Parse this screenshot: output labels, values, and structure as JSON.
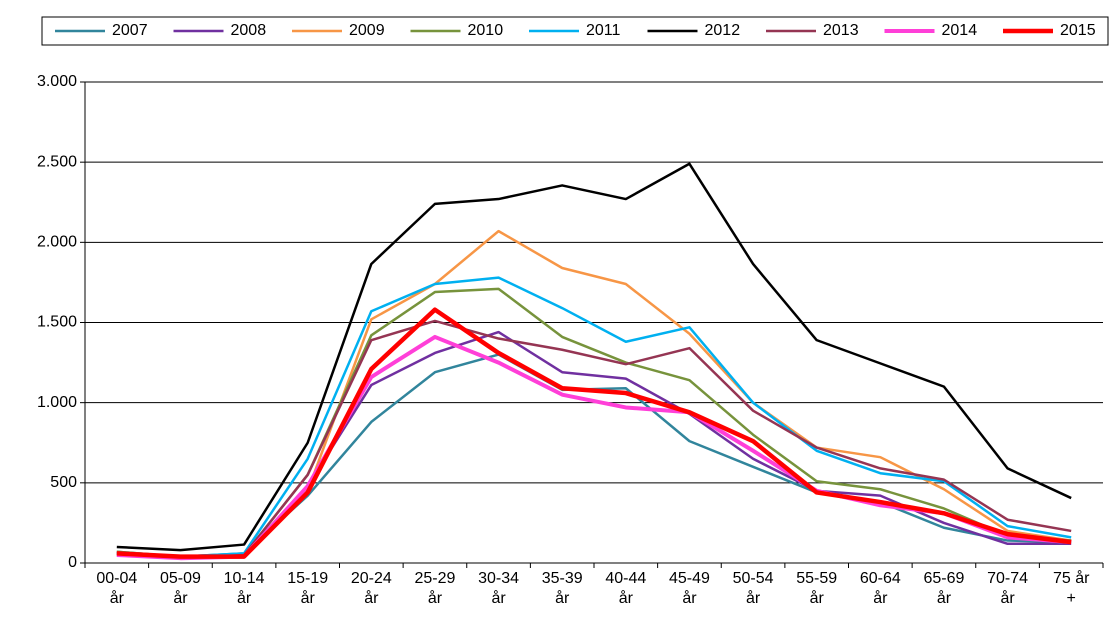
{
  "chart_data": {
    "type": "line",
    "categories": [
      "00-04 år",
      "05-09 år",
      "10-14 år",
      "15-19 år",
      "20-24 år",
      "25-29 år",
      "30-34 år",
      "35-39 år",
      "40-44 år",
      "45-49 år",
      "50-54 år",
      "55-59 år",
      "60-64 år",
      "65-69 år",
      "70-74 år",
      "75 år +"
    ],
    "ylim": [
      0,
      3000
    ],
    "yticks": [
      0,
      500,
      {
        "value": 1000,
        "label": "1.000"
      },
      {
        "value": 1500,
        "label": "1.500"
      },
      {
        "value": 2000,
        "label": "2.000"
      },
      {
        "value": 2500,
        "label": "2.500"
      },
      {
        "value": 3000,
        "label": "3.000"
      }
    ],
    "grid": true,
    "legend": "top",
    "series": [
      {
        "name": "2007",
        "color": "#31859c",
        "width": 2.5,
        "values": [
          70,
          40,
          60,
          420,
          880,
          1190,
          1300,
          1080,
          1090,
          760,
          600,
          440,
          380,
          220,
          140,
          130
        ]
      },
      {
        "name": "2008",
        "color": "#7030a0",
        "width": 2.5,
        "values": [
          60,
          30,
          50,
          480,
          1110,
          1310,
          1440,
          1190,
          1150,
          930,
          650,
          450,
          420,
          250,
          120,
          120
        ]
      },
      {
        "name": "2009",
        "color": "#f79646",
        "width": 2.5,
        "values": [
          60,
          40,
          50,
          450,
          1520,
          1740,
          2070,
          1840,
          1740,
          1430,
          1000,
          720,
          660,
          460,
          200,
          140
        ]
      },
      {
        "name": "2010",
        "color": "#77933c",
        "width": 2.5,
        "values": [
          70,
          40,
          50,
          550,
          1420,
          1690,
          1710,
          1410,
          1250,
          1140,
          800,
          510,
          460,
          340,
          170,
          140
        ]
      },
      {
        "name": "2011",
        "color": "#00b0f0",
        "width": 2.5,
        "values": [
          60,
          40,
          60,
          650,
          1570,
          1740,
          1780,
          1590,
          1380,
          1470,
          1000,
          700,
          560,
          510,
          230,
          160
        ]
      },
      {
        "name": "2012",
        "color": "#000000",
        "width": 2.5,
        "values": [
          100,
          80,
          115,
          750,
          1865,
          2240,
          2270,
          2355,
          2270,
          2490,
          1865,
          1390,
          1245,
          1100,
          590,
          405
        ]
      },
      {
        "name": "2013",
        "color": "#953553",
        "width": 2.5,
        "values": [
          60,
          30,
          50,
          550,
          1390,
          1510,
          1400,
          1330,
          1240,
          1340,
          950,
          720,
          590,
          520,
          270,
          200
        ]
      },
      {
        "name": "2014",
        "color": "#ff3fd8",
        "width": 4,
        "values": [
          50,
          30,
          40,
          480,
          1160,
          1410,
          1250,
          1050,
          970,
          940,
          700,
          450,
          360,
          310,
          160,
          130
        ]
      },
      {
        "name": "2015",
        "color": "#ff0000",
        "width": 4.5,
        "values": [
          60,
          40,
          40,
          440,
          1210,
          1580,
          1310,
          1090,
          1060,
          940,
          760,
          440,
          380,
          310,
          180,
          130
        ]
      }
    ]
  }
}
